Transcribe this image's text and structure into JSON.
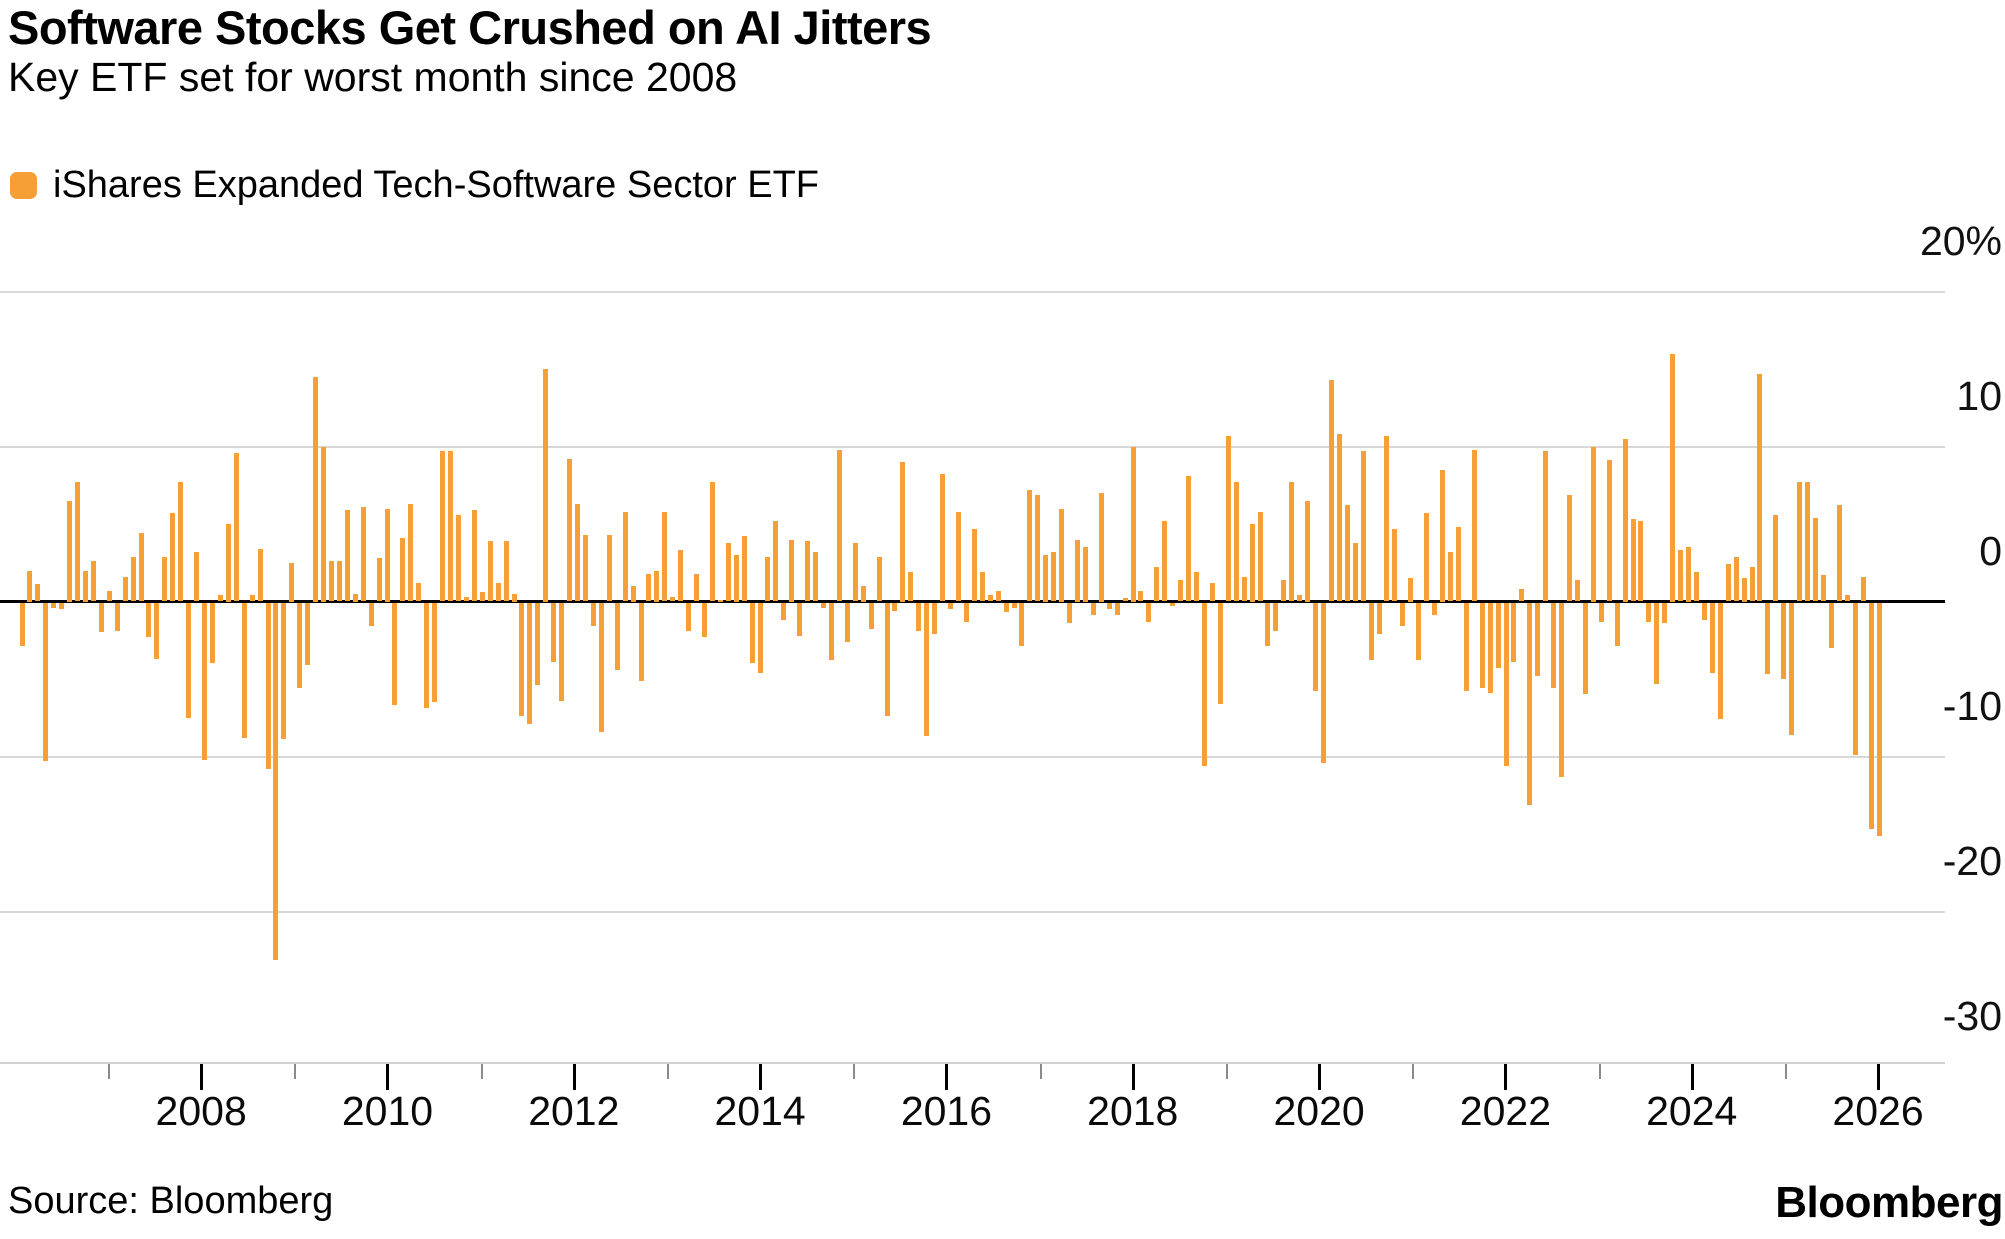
{
  "header": {
    "title": "Software Stocks Get Crushed on AI Jitters",
    "subtitle": "Key ETF set for worst month since 2008"
  },
  "legend": {
    "label": "iShares Expanded Tech-Software Sector ETF",
    "swatch_color": "#F79F37"
  },
  "footer": {
    "source": "Source: Bloomberg",
    "brand": "Bloomberg"
  },
  "chart_data": {
    "type": "bar",
    "title": "Software Stocks Get Crushed on AI Jitters",
    "subtitle": "Key ETF set for worst month since 2008",
    "series_name": "iShares Expanded Tech-Software Sector ETF",
    "unit": "%",
    "frequency": "monthly",
    "grid": true,
    "legend_position": "top-left",
    "ylim": [
      -33,
      22
    ],
    "x_range_years": [
      2006,
      2026
    ],
    "y_ticks": [
      "20%",
      "10",
      "0",
      "-10",
      "-20",
      "-30"
    ],
    "y_tick_values": [
      20,
      10,
      0,
      -10,
      -20,
      -30
    ],
    "x_tick_labels": [
      "2008",
      "2010",
      "2012",
      "2014",
      "2016",
      "2018",
      "2020",
      "2022",
      "2024",
      "2026"
    ],
    "x_minor_ticks": [
      "2007",
      "2009",
      "2011",
      "2013",
      "2015",
      "2017",
      "2019",
      "2021",
      "2023",
      "2025"
    ],
    "bar_color": "#F79F37",
    "values": [
      -2.8,
      2.0,
      1.1,
      -10.2,
      -0.3,
      -0.4,
      6.5,
      7.7,
      2.0,
      2.6,
      -1.9,
      0.7,
      -1.8,
      1.6,
      2.9,
      4.4,
      -2.2,
      -3.6,
      2.9,
      5.7,
      7.7,
      -7.4,
      3.2,
      -10.1,
      -3.9,
      0.4,
      5.0,
      9.6,
      -8.7,
      0.4,
      3.4,
      -10.7,
      -23.0,
      -8.8,
      2.5,
      -5.5,
      -4.0,
      14.5,
      10.0,
      2.6,
      2.6,
      5.9,
      0.5,
      6.1,
      -1.5,
      2.8,
      6.0,
      -6.6,
      4.1,
      6.3,
      1.2,
      -6.8,
      -6.4,
      9.7,
      9.7,
      5.6,
      0.3,
      5.9,
      0.6,
      3.9,
      1.2,
      3.9,
      0.5,
      -7.3,
      -7.8,
      -5.3,
      15.0,
      -3.8,
      -6.3,
      9.2,
      6.3,
      4.3,
      -1.5,
      -8.3,
      4.3,
      -4.3,
      5.8,
      1.0,
      -5.0,
      1.8,
      2.0,
      5.8,
      0.3,
      3.3,
      -1.8,
      1.8,
      -2.2,
      7.7,
      0.0,
      3.8,
      3.0,
      4.2,
      -3.9,
      -4.5,
      2.9,
      5.2,
      -1.1,
      4.0,
      -2.1,
      3.9,
      3.2,
      -0.3,
      -3.7,
      9.8,
      -2.5,
      3.8,
      1.0,
      -1.7,
      2.9,
      -7.3,
      -0.5,
      9.0,
      1.9,
      -1.8,
      -8.6,
      -2.0,
      8.2,
      -0.4,
      5.8,
      -1.2,
      4.7,
      1.9,
      0.4,
      0.7,
      -0.6,
      -0.3,
      -2.8,
      7.2,
      6.9,
      3.0,
      3.2,
      6.0,
      -1.3,
      4.0,
      3.5,
      -0.8,
      7.0,
      -0.4,
      -0.8,
      0.2,
      10.0,
      0.7,
      -1.2,
      2.2,
      5.2,
      -0.2,
      1.4,
      8.1,
      1.9,
      -10.5,
      1.2,
      -6.5,
      10.7,
      7.7,
      1.6,
      5.0,
      5.8,
      -2.8,
      -1.8,
      1.4,
      7.7,
      0.4,
      6.5,
      -5.7,
      -10.3,
      14.3,
      10.8,
      6.2,
      3.8,
      9.7,
      -3.7,
      -2.0,
      10.7,
      4.7,
      -1.5,
      1.5,
      -3.7,
      5.7,
      -0.8,
      8.5,
      3.2,
      4.8,
      -5.7,
      9.8,
      -5.5,
      -5.8,
      -4.2,
      -10.5,
      -3.8,
      0.8,
      -13.0,
      -4.7,
      9.7,
      -5.5,
      -11.2,
      6.9,
      1.4,
      -5.9,
      10.0,
      -1.2,
      9.1,
      -2.8,
      10.5,
      5.3,
      5.2,
      -1.2,
      -5.2,
      -1.3,
      16.0,
      3.3,
      3.5,
      1.9,
      -1.1,
      -4.5,
      -7.5,
      2.4,
      2.9,
      1.5,
      2.2,
      14.7,
      -4.6,
      5.6,
      -4.9,
      -8.5,
      7.7,
      7.7,
      5.4,
      1.7,
      -2.9,
      6.2,
      0.4,
      -9.8,
      1.6,
      -14.6,
      -15.0
    ]
  }
}
